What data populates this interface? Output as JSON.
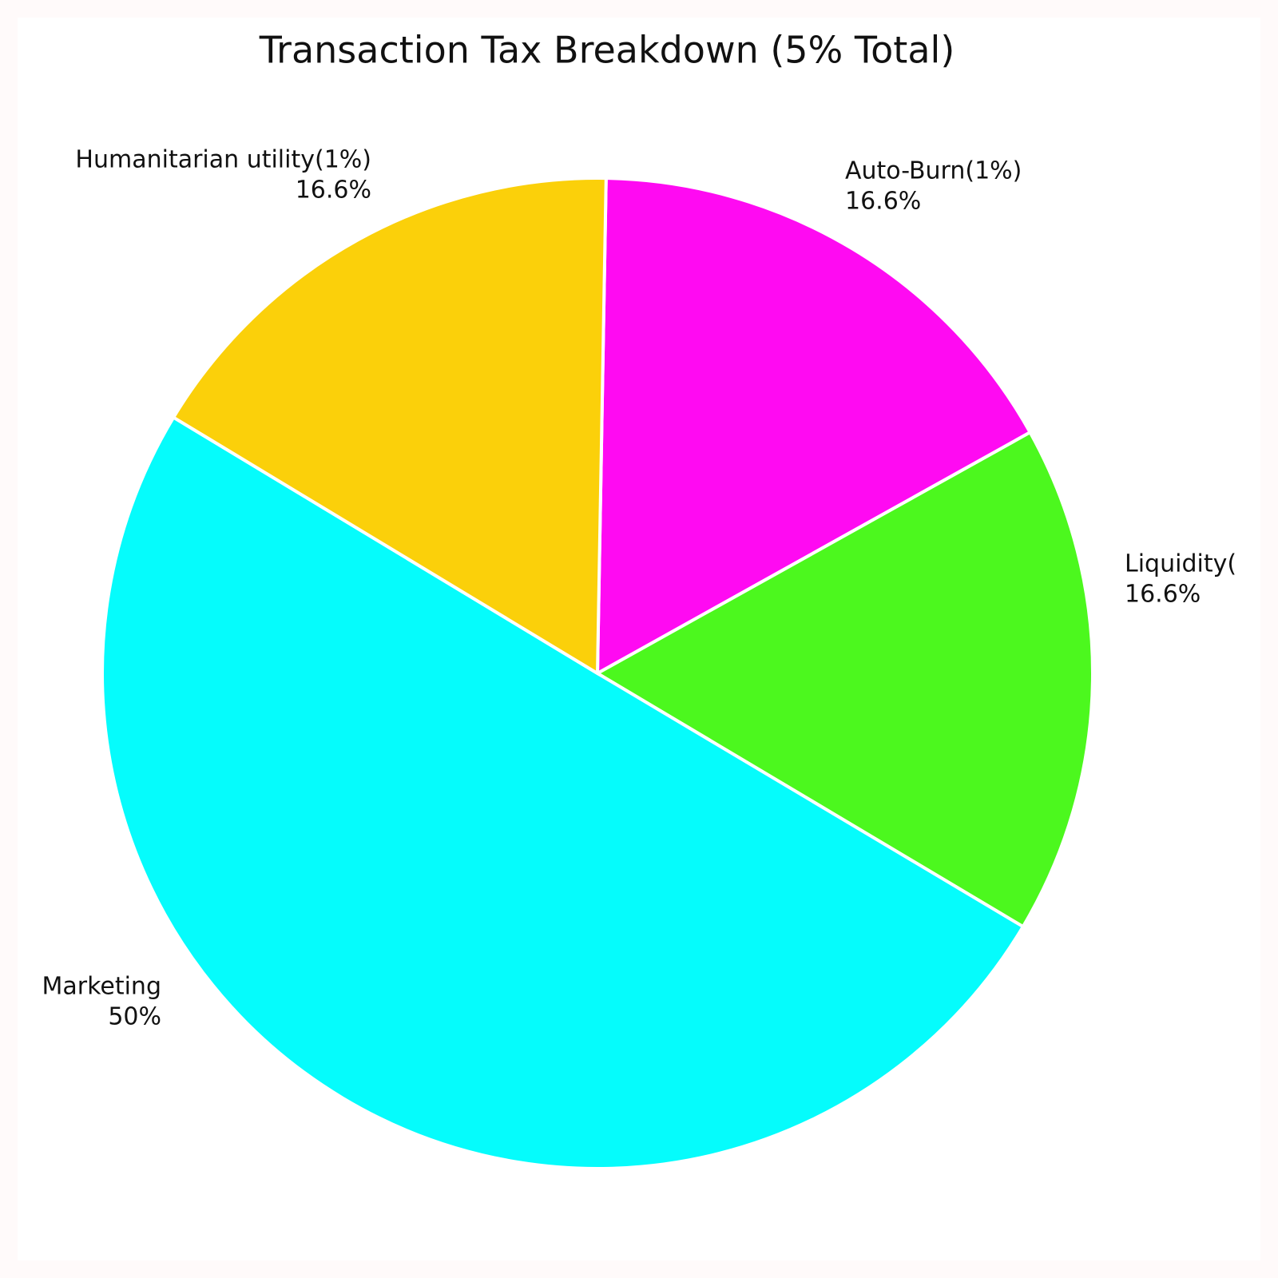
{
  "chart_data": {
    "type": "pie",
    "title": "Transaction Tax Breakdown (5% Total)",
    "categories": [
      "Auto-Burn(1%)",
      "Liquidity(",
      "Marketing",
      "Humanitarian utility(1%)"
    ],
    "values": [
      16.6,
      16.6,
      50,
      16.6
    ],
    "value_labels": [
      "16.6%",
      "16.6%",
      "50%",
      "16.6%"
    ],
    "colors": [
      "#ff0af2",
      "#4cf81e",
      "#05fcfc",
      "#fbd00a"
    ]
  }
}
